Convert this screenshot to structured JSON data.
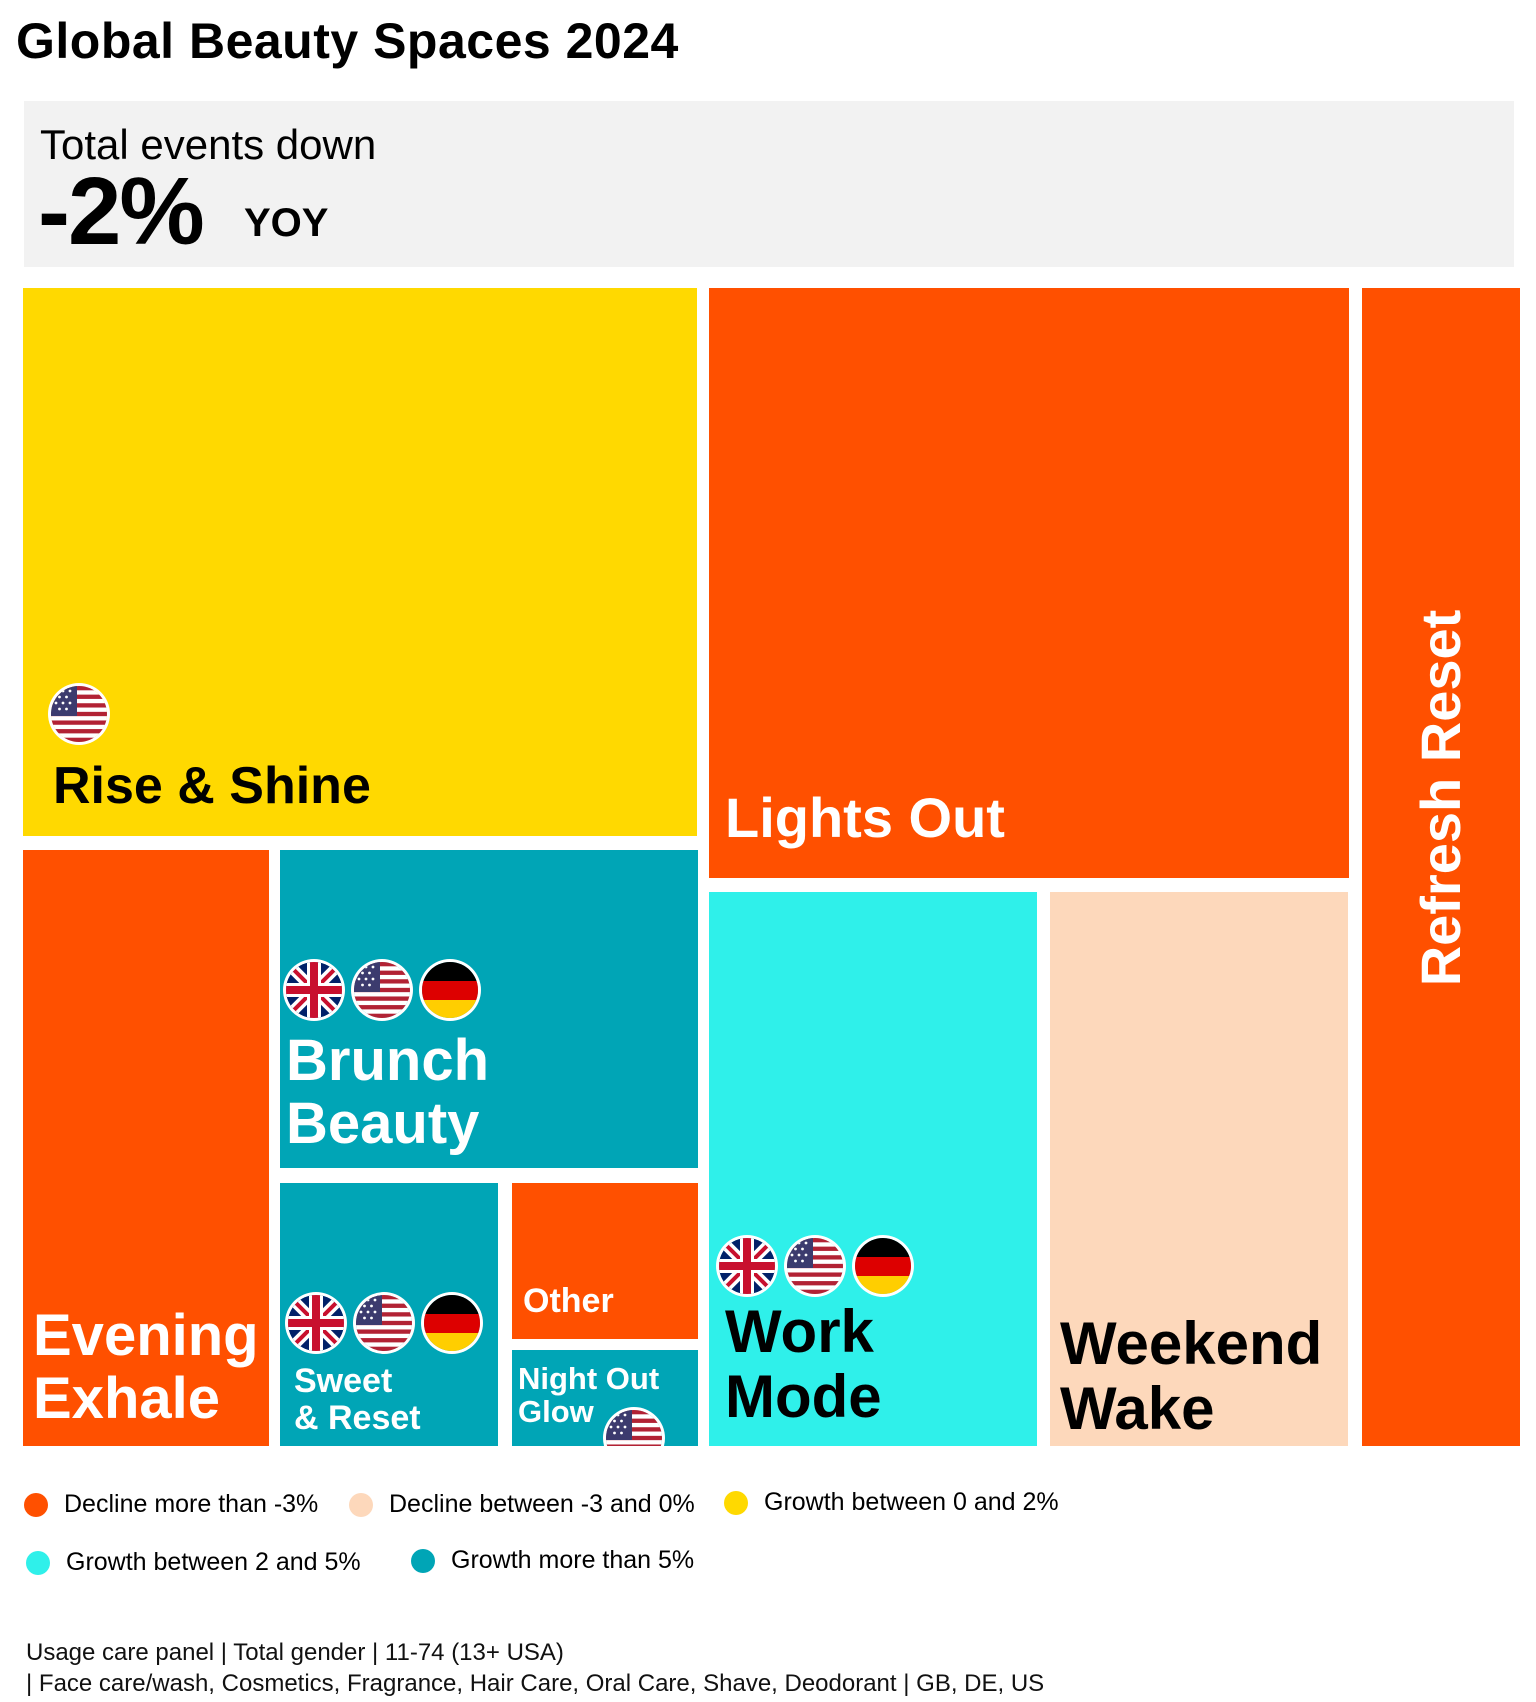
{
  "chart_data": {
    "type": "treemap",
    "title": "Global Beauty Spaces 2024",
    "summary": {
      "label": "Total events down",
      "value": "-2%",
      "unit": "YOY"
    },
    "colors": {
      "decline_gt_3": "#ff5000",
      "decline_0_3": "#fdd8bb",
      "growth_0_2": "#ffd900",
      "growth_2_5": "#2ff0ea",
      "growth_gt_5": "#00a5b6"
    },
    "tiles": [
      {
        "name": "Rise & Shine",
        "label": "Rise & Shine",
        "category": "growth_0_2",
        "countries": [
          "US"
        ]
      },
      {
        "name": "Lights Out",
        "label": "Lights Out",
        "category": "decline_gt_3",
        "countries": []
      },
      {
        "name": "Refresh Reset",
        "label": "Refresh Reset",
        "category": "decline_gt_3",
        "countries": []
      },
      {
        "name": "Evening Exhale",
        "label": "Evening\nExhale",
        "category": "decline_gt_3",
        "countries": []
      },
      {
        "name": "Brunch Beauty",
        "label": "Brunch\nBeauty",
        "category": "growth_gt_5",
        "countries": [
          "GB",
          "US",
          "DE"
        ]
      },
      {
        "name": "Sweet & Reset",
        "label": "Sweet\n& Reset",
        "category": "growth_gt_5",
        "countries": [
          "GB",
          "US",
          "DE"
        ]
      },
      {
        "name": "Other",
        "label": "Other",
        "category": "decline_gt_3",
        "countries": []
      },
      {
        "name": "Night Out Glow",
        "label": "Night Out\nGlow",
        "category": "growth_gt_5",
        "countries": [
          "US"
        ]
      },
      {
        "name": "Work Mode",
        "label": "Work\nMode",
        "category": "growth_2_5",
        "countries": [
          "GB",
          "US",
          "DE"
        ]
      },
      {
        "name": "Weekend Wake",
        "label": "Weekend\nWake",
        "category": "decline_0_3",
        "countries": []
      }
    ],
    "legend": [
      {
        "key": "decline_gt_3",
        "label": "Decline more than -3%"
      },
      {
        "key": "decline_0_3",
        "label": "Decline between -3 and 0%"
      },
      {
        "key": "growth_0_2",
        "label": "Growth between 0 and 2%"
      },
      {
        "key": "growth_2_5",
        "label": "Growth between 2 and 5%"
      },
      {
        "key": "growth_gt_5",
        "label": "Growth more than 5%"
      }
    ],
    "footnote": "Usage care panel | Total gender | 11-74 (13+ USA)\n| Face care/wash, Cosmetics, Fragrance, Hair Care, Oral Care, Shave, Deodorant | GB, DE, US"
  }
}
